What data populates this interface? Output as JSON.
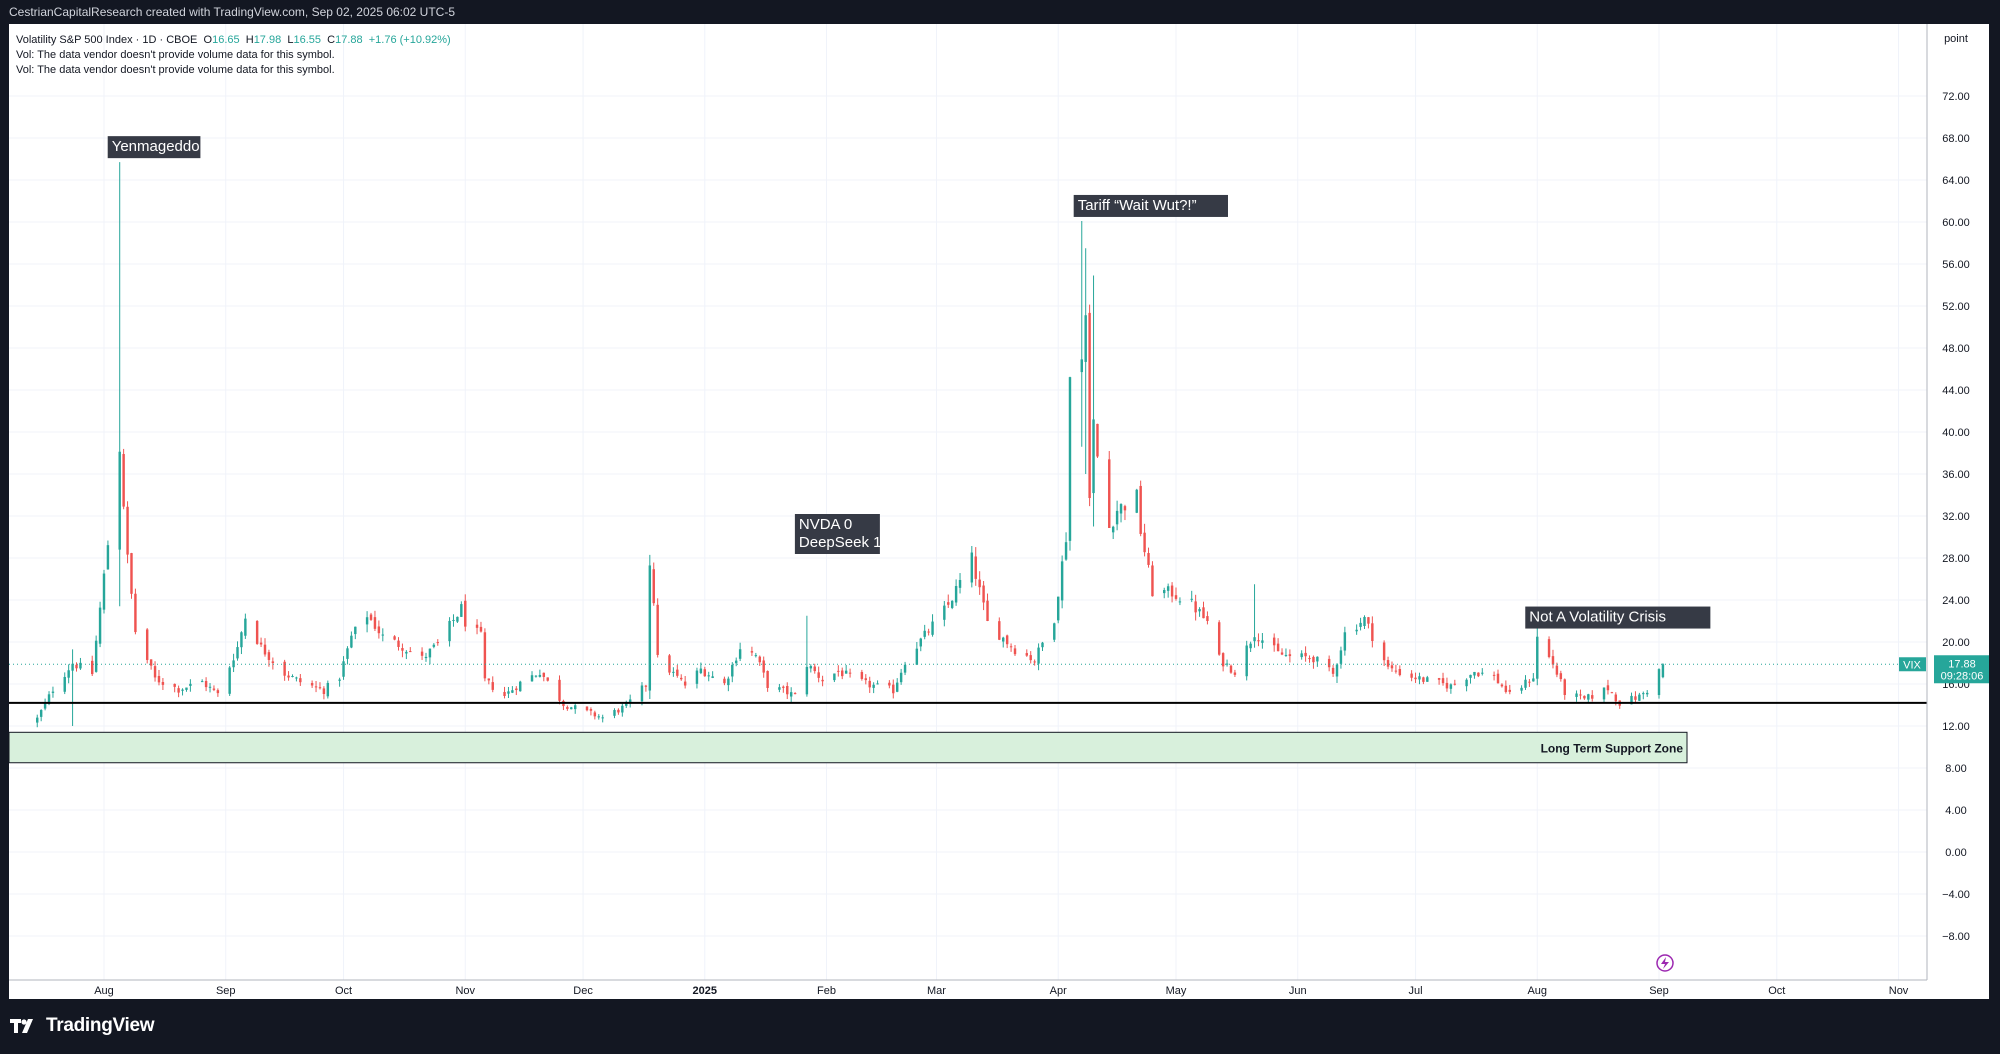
{
  "header": {
    "credit": "CestrianCapitalResearch created with TradingView.com, Sep 02, 2025 06:02 UTC-5"
  },
  "legend": {
    "symbol": "Volatility S&P 500 Index · 1D · CBOE",
    "o_label": "O",
    "o_value": "16.65",
    "h_label": "H",
    "h_value": "17.98",
    "l_label": "L",
    "l_value": "16.55",
    "c_label": "C",
    "c_value": "17.88",
    "change": "+1.76 (+10.92%)",
    "vol_note_1": "Vol: The data vendor doesn't provide volume data for this symbol.",
    "vol_note_2": "Vol: The data vendor doesn't provide volume data for this symbol."
  },
  "price_label": {
    "symbol": "VIX",
    "value": "17.88",
    "countdown": "09:28:06"
  },
  "footer": {
    "brand": "TradingView"
  },
  "colors": {
    "up": "#26a69a",
    "down": "#ef5350",
    "support_fill": "#d8f0dc",
    "annotation_bg": "#363a45"
  },
  "chart_data": {
    "type": "candlestick",
    "symbol": "VIX",
    "yunit": "point",
    "ylim": [
      -10,
      76
    ],
    "y_ticks": [
      "72.00",
      "68.00",
      "64.00",
      "60.00",
      "56.00",
      "52.00",
      "48.00",
      "44.00",
      "40.00",
      "36.00",
      "32.00",
      "28.00",
      "24.00",
      "20.00",
      "16.00",
      "12.00",
      "8.00",
      "4.00",
      "0.00",
      "−4.00",
      "−8.00"
    ],
    "x_ticks": [
      {
        "label": "Aug",
        "date": "2024-08-01",
        "bold": false
      },
      {
        "label": "Sep",
        "date": "2024-09-01",
        "bold": false
      },
      {
        "label": "Oct",
        "date": "2024-10-01",
        "bold": false
      },
      {
        "label": "Nov",
        "date": "2024-11-01",
        "bold": false
      },
      {
        "label": "Dec",
        "date": "2024-12-01",
        "bold": false
      },
      {
        "label": "2025",
        "date": "2025-01-01",
        "bold": true
      },
      {
        "label": "Feb",
        "date": "2025-02-01",
        "bold": false
      },
      {
        "label": "Mar",
        "date": "2025-03-01",
        "bold": false
      },
      {
        "label": "Apr",
        "date": "2025-04-01",
        "bold": false
      },
      {
        "label": "May",
        "date": "2025-05-01",
        "bold": false
      },
      {
        "label": "Jun",
        "date": "2025-06-01",
        "bold": false
      },
      {
        "label": "Jul",
        "date": "2025-07-01",
        "bold": false
      },
      {
        "label": "Aug",
        "date": "2025-08-01",
        "bold": false
      },
      {
        "label": "Sep",
        "date": "2025-09-01",
        "bold": false
      },
      {
        "label": "Oct",
        "date": "2025-10-01",
        "bold": false
      },
      {
        "label": "Nov",
        "date": "2025-11-01",
        "bold": false
      }
    ],
    "support_line": 14.2,
    "support_zone": {
      "low": 8.5,
      "high": 11.4,
      "label": "Long Term Support Zone"
    },
    "last_price": 17.88,
    "annotations": [
      {
        "text": "Yenmageddon",
        "date": "2024-08-05",
        "y": 65.7
      },
      {
        "text": "NVDA 0\nDeepSeek 1",
        "date": "2025-01-27",
        "y": 28.0
      },
      {
        "text": "Tariff “Wait Wut?!”",
        "date": "2025-04-08",
        "y": 60.1
      },
      {
        "text": "Not A Volatility Crisis",
        "date": "2025-08-01",
        "y": 20.9
      }
    ],
    "anchors": [
      [
        "2024-07-15",
        12.7
      ],
      [
        "2024-07-19",
        15.5
      ],
      [
        "2024-07-24",
        18.0
      ],
      [
        "2024-07-29",
        17.0
      ],
      [
        "2024-08-05",
        38.6
      ],
      [
        "2024-08-07",
        27.9
      ],
      [
        "2024-08-09",
        21.0
      ],
      [
        "2024-08-14",
        16.5
      ],
      [
        "2024-08-20",
        15.5
      ],
      [
        "2024-08-26",
        16.2
      ],
      [
        "2024-08-30",
        15.0
      ],
      [
        "2024-09-04",
        19.5
      ],
      [
        "2024-09-06",
        22.4
      ],
      [
        "2024-09-10",
        19.5
      ],
      [
        "2024-09-16",
        17.0
      ],
      [
        "2024-09-20",
        16.2
      ],
      [
        "2024-09-26",
        15.4
      ],
      [
        "2024-09-30",
        16.7
      ],
      [
        "2024-10-03",
        20.5
      ],
      [
        "2024-10-07",
        22.6
      ],
      [
        "2024-10-11",
        20.5
      ],
      [
        "2024-10-16",
        19.6
      ],
      [
        "2024-10-21",
        18.4
      ],
      [
        "2024-10-25",
        19.8
      ],
      [
        "2024-10-31",
        23.2
      ],
      [
        "2024-11-01",
        21.9
      ],
      [
        "2024-11-05",
        20.5
      ],
      [
        "2024-11-06",
        16.3
      ],
      [
        "2024-11-11",
        14.9
      ],
      [
        "2024-11-15",
        16.1
      ],
      [
        "2024-11-20",
        17.2
      ],
      [
        "2024-11-26",
        14.1
      ],
      [
        "2024-12-02",
        13.3
      ],
      [
        "2024-12-06",
        12.8
      ],
      [
        "2024-12-12",
        13.9
      ],
      [
        "2024-12-17",
        15.9
      ],
      [
        "2024-12-18",
        27.6
      ],
      [
        "2024-12-19",
        24.1
      ],
      [
        "2024-12-20",
        18.4
      ],
      [
        "2024-12-27",
        15.9
      ],
      [
        "2024-12-31",
        17.4
      ],
      [
        "2025-01-06",
        16.0
      ],
      [
        "2025-01-10",
        19.5
      ],
      [
        "2025-01-14",
        18.7
      ],
      [
        "2025-01-17",
        15.9
      ],
      [
        "2025-01-24",
        14.9
      ],
      [
        "2025-01-27",
        17.9
      ],
      [
        "2025-01-31",
        16.4
      ],
      [
        "2025-02-04",
        17.2
      ],
      [
        "2025-02-11",
        16.0
      ],
      [
        "2025-02-18",
        15.4
      ],
      [
        "2025-02-21",
        18.2
      ],
      [
        "2025-02-27",
        21.1
      ],
      [
        "2025-03-04",
        23.5
      ],
      [
        "2025-03-10",
        27.9
      ],
      [
        "2025-03-14",
        21.8
      ],
      [
        "2025-03-21",
        19.3
      ],
      [
        "2025-03-26",
        18.3
      ],
      [
        "2025-03-31",
        22.3
      ],
      [
        "2025-04-03",
        30.0
      ],
      [
        "2025-04-04",
        45.3
      ],
      [
        "2025-04-07",
        46.9
      ],
      [
        "2025-04-08",
        52.3
      ],
      [
        "2025-04-09",
        33.6
      ],
      [
        "2025-04-10",
        40.7
      ],
      [
        "2025-04-11",
        37.6
      ],
      [
        "2025-04-14",
        30.9
      ],
      [
        "2025-04-16",
        32.6
      ],
      [
        "2025-04-21",
        33.8
      ],
      [
        "2025-04-22",
        30.6
      ],
      [
        "2025-04-25",
        24.8
      ],
      [
        "2025-04-30",
        24.7
      ],
      [
        "2025-05-05",
        23.6
      ],
      [
        "2025-05-09",
        21.9
      ],
      [
        "2025-05-12",
        18.4
      ],
      [
        "2025-05-16",
        17.2
      ],
      [
        "2025-05-21",
        20.9
      ],
      [
        "2025-05-27",
        18.9
      ],
      [
        "2025-05-30",
        18.6
      ],
      [
        "2025-06-05",
        18.5
      ],
      [
        "2025-06-10",
        16.9
      ],
      [
        "2025-06-13",
        20.8
      ],
      [
        "2025-06-18",
        22.2
      ],
      [
        "2025-06-20",
        20.6
      ],
      [
        "2025-06-24",
        17.5
      ],
      [
        "2025-06-30",
        16.7
      ],
      [
        "2025-07-03",
        16.4
      ],
      [
        "2025-07-10",
        15.8
      ],
      [
        "2025-07-16",
        17.2
      ],
      [
        "2025-07-21",
        16.7
      ],
      [
        "2025-07-25",
        14.9
      ],
      [
        "2025-07-31",
        16.7
      ],
      [
        "2025-08-01",
        20.4
      ],
      [
        "2025-08-05",
        17.9
      ],
      [
        "2025-08-08",
        15.2
      ],
      [
        "2025-08-13",
        14.5
      ],
      [
        "2025-08-19",
        15.6
      ],
      [
        "2025-08-22",
        14.2
      ],
      [
        "2025-08-27",
        14.8
      ],
      [
        "2025-08-29",
        15.4
      ],
      [
        "2025-09-02",
        17.88
      ]
    ],
    "spikes": {
      "2024-07-24": [
        19.3,
        12.0
      ],
      "2024-08-05": [
        65.7,
        23.4
      ],
      "2024-12-18": [
        28.3,
        15.6
      ],
      "2025-01-27": [
        22.5,
        17.0
      ],
      "2025-04-07": [
        60.1,
        38.6
      ],
      "2025-04-08": [
        57.5,
        36.0
      ],
      "2025-04-10": [
        54.9,
        31.0
      ],
      "2025-05-21": [
        25.5,
        19.5
      ],
      "2025-08-01": [
        21.9,
        15.9
      ]
    }
  }
}
